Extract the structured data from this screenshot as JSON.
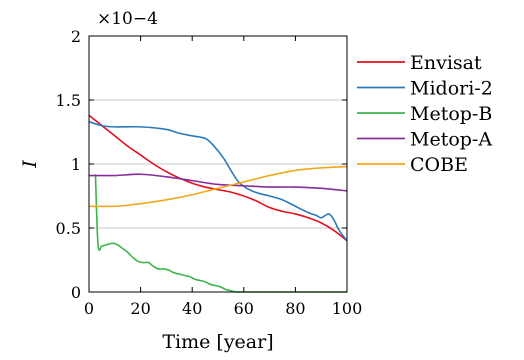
{
  "chart_data": {
    "type": "line",
    "xlabel": "Time [year]",
    "ylabel": "I",
    "y_scale_label": "×10−4",
    "xlim": [
      0,
      100
    ],
    "ylim": [
      0,
      2
    ],
    "xticks": [
      "0",
      "20",
      "40",
      "60",
      "80",
      "100"
    ],
    "yticks": [
      "0",
      "0.5",
      "1",
      "1.5",
      "2"
    ],
    "grid": "horizontal",
    "legend_position": "outside-right",
    "series": [
      {
        "name": "Envisat",
        "color": "#e3101d",
        "x": [
          0,
          5,
          10,
          15,
          20,
          25,
          30,
          35,
          40,
          45,
          50,
          55,
          60,
          65,
          70,
          75,
          80,
          85,
          90,
          95,
          100
        ],
        "y": [
          1.38,
          1.3,
          1.22,
          1.14,
          1.07,
          1.0,
          0.94,
          0.89,
          0.85,
          0.82,
          0.8,
          0.78,
          0.75,
          0.71,
          0.66,
          0.63,
          0.61,
          0.58,
          0.54,
          0.48,
          0.4
        ]
      },
      {
        "name": "Midori-2",
        "color": "#2b7bba",
        "x": [
          0,
          5,
          10,
          20,
          30,
          35,
          40,
          45,
          48,
          52,
          55,
          58,
          62,
          66,
          70,
          75,
          80,
          85,
          88,
          90,
          93,
          95,
          97,
          100
        ],
        "y": [
          1.33,
          1.3,
          1.29,
          1.29,
          1.27,
          1.24,
          1.22,
          1.2,
          1.15,
          1.05,
          0.95,
          0.86,
          0.8,
          0.77,
          0.75,
          0.72,
          0.67,
          0.62,
          0.6,
          0.58,
          0.61,
          0.56,
          0.48,
          0.4
        ]
      },
      {
        "name": "Metop-B",
        "color": "#3cb54a",
        "x": [
          2.5,
          3.5,
          5,
          7,
          9,
          11,
          13,
          15,
          17,
          19,
          21,
          23,
          25,
          27,
          29,
          31,
          33,
          35,
          37,
          39,
          41,
          43,
          45,
          47,
          49,
          51,
          53,
          55,
          57,
          60,
          70,
          80,
          90,
          100
        ],
        "y": [
          0.92,
          0.37,
          0.36,
          0.37,
          0.38,
          0.37,
          0.34,
          0.31,
          0.27,
          0.24,
          0.23,
          0.23,
          0.2,
          0.18,
          0.18,
          0.17,
          0.15,
          0.14,
          0.13,
          0.12,
          0.1,
          0.09,
          0.08,
          0.06,
          0.05,
          0.04,
          0.02,
          0.01,
          0.0,
          0.0,
          0.0,
          0.0,
          0.0,
          0.0
        ]
      },
      {
        "name": "Metop-A",
        "color": "#8a2b9c",
        "x": [
          0,
          10,
          20,
          30,
          40,
          50,
          60,
          70,
          80,
          90,
          100
        ],
        "y": [
          0.91,
          0.91,
          0.92,
          0.9,
          0.87,
          0.84,
          0.83,
          0.82,
          0.82,
          0.81,
          0.79
        ]
      },
      {
        "name": "COBE",
        "color": "#f0a81c",
        "x": [
          0,
          10,
          20,
          30,
          40,
          50,
          60,
          70,
          80,
          90,
          100
        ],
        "y": [
          0.67,
          0.67,
          0.69,
          0.72,
          0.76,
          0.81,
          0.86,
          0.91,
          0.95,
          0.97,
          0.98
        ]
      }
    ]
  }
}
